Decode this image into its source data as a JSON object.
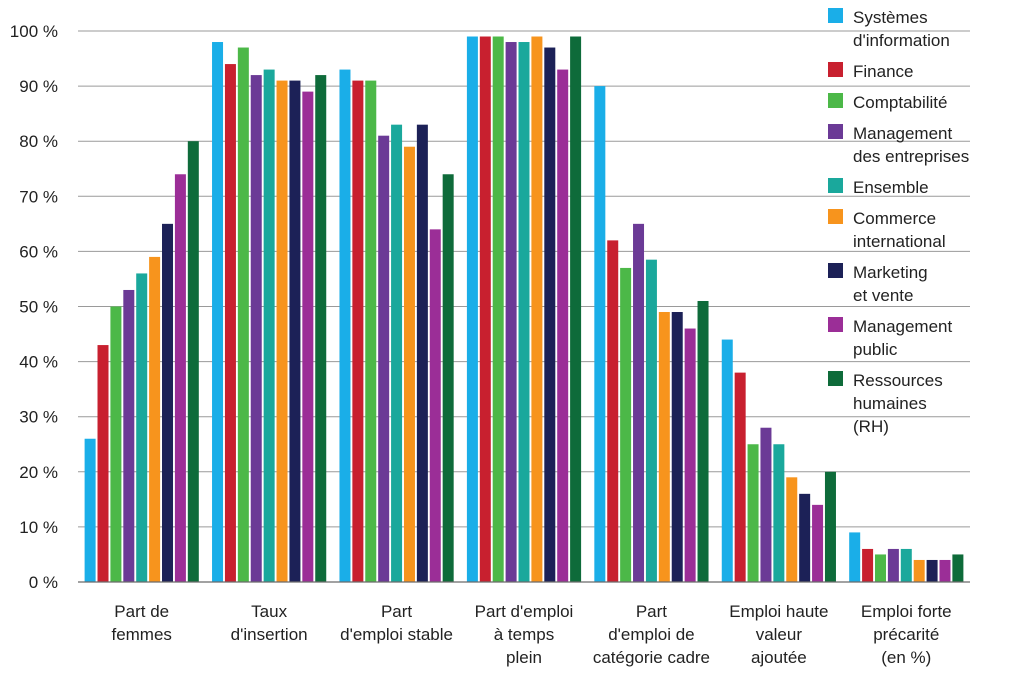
{
  "chart_data": {
    "type": "bar",
    "categories": [
      [
        "Part de",
        "femmes"
      ],
      [
        "Taux",
        "d'insertion"
      ],
      [
        "Part",
        "d'emploi stable"
      ],
      [
        "Part d'emploi",
        "à temps",
        "plein"
      ],
      [
        "Part",
        "d'emploi de",
        "catégorie cadre"
      ],
      [
        "Emploi haute",
        "valeur",
        "ajoutée"
      ],
      [
        "Emploi forte",
        "précarité",
        "(en %)"
      ]
    ],
    "series": [
      {
        "name": [
          "Systèmes",
          "d'information"
        ],
        "color": "#1aaee8",
        "values": [
          26,
          98,
          93,
          99,
          90,
          44,
          9
        ]
      },
      {
        "name": [
          "Finance"
        ],
        "color": "#c8202f",
        "values": [
          43,
          94,
          91,
          99,
          62,
          38,
          6
        ]
      },
      {
        "name": [
          "Comptabilité"
        ],
        "color": "#4cb848",
        "values": [
          50,
          97,
          91,
          99,
          57,
          25,
          5
        ]
      },
      {
        "name": [
          "Management",
          "des entreprises"
        ],
        "color": "#6b3a96",
        "values": [
          53,
          92,
          81,
          98,
          65,
          28,
          6
        ]
      },
      {
        "name": [
          "Ensemble"
        ],
        "color": "#1aa89c",
        "values": [
          56,
          93,
          83,
          98,
          58.5,
          25,
          6
        ]
      },
      {
        "name": [
          "Commerce",
          "international"
        ],
        "color": "#f7941d",
        "values": [
          59,
          91,
          79,
          99,
          49,
          19,
          4
        ]
      },
      {
        "name": [
          "Marketing",
          "et vente"
        ],
        "color": "#1c2157",
        "values": [
          65,
          91,
          83,
          97,
          49,
          16,
          4
        ]
      },
      {
        "name": [
          "Management",
          "public"
        ],
        "color": "#9b2e97",
        "values": [
          74,
          89,
          64,
          93,
          46,
          14,
          4
        ]
      },
      {
        "name": [
          "Ressources",
          "humaines",
          "(RH)"
        ],
        "color": "#0e6b3a",
        "values": [
          80,
          92,
          74,
          99,
          51,
          20,
          5
        ]
      }
    ],
    "y_ticks": [
      "0 %",
      "10 %",
      "20 %",
      "30 %",
      "40 %",
      "50 %",
      "60 %",
      "70 %",
      "80 %",
      "90 %",
      "100 %"
    ],
    "ylim": [
      0,
      100
    ],
    "grid": true,
    "legend_position": "top-right",
    "title": "",
    "xlabel": "",
    "ylabel": ""
  }
}
